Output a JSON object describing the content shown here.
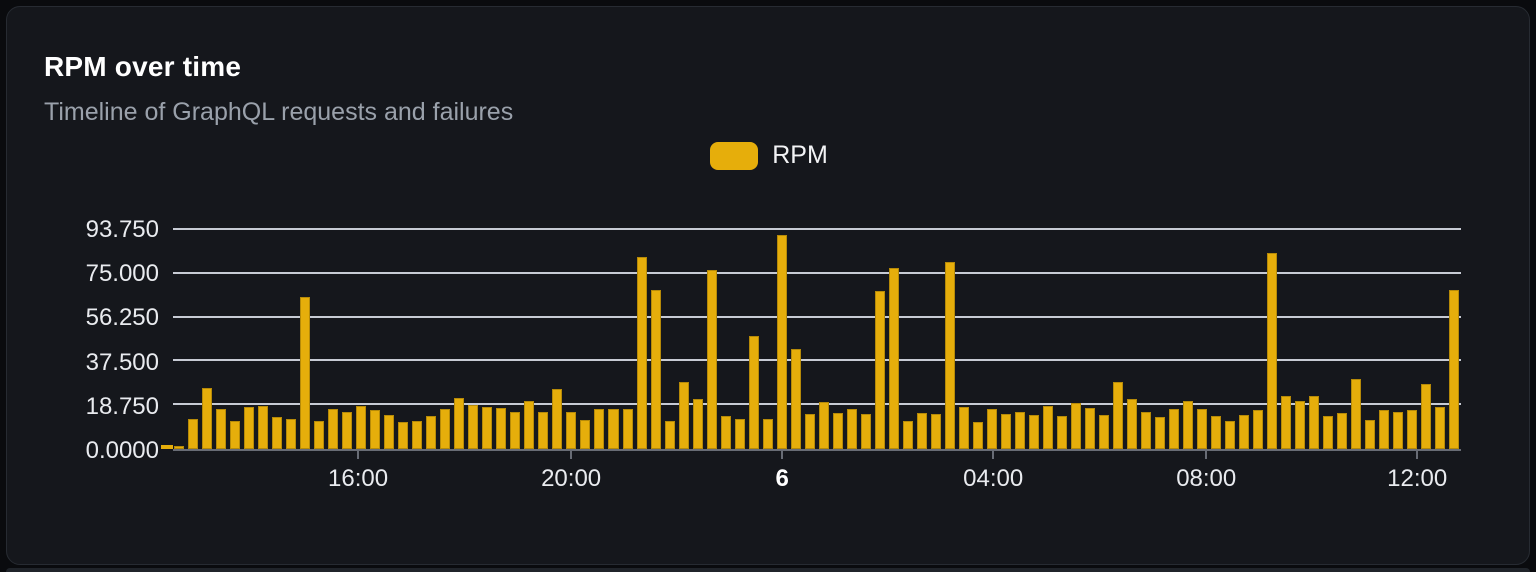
{
  "card": {
    "title": "RPM over time",
    "subtitle": "Timeline of GraphQL requests and failures"
  },
  "legend": {
    "label": "RPM",
    "swatch_color": "#e6ae0b"
  },
  "colors": {
    "page_background": "#0a0b0e",
    "card_background": "#15171c",
    "card_border": "#272b32",
    "bar": "#e6ae0b",
    "gridline": "#d7dbe4",
    "axis": "#686c75",
    "title_text": "#ffffff",
    "subtitle_text": "#9aa1ab",
    "axis_text": "#e9ebef"
  },
  "chart_data": {
    "type": "bar",
    "title": "RPM over time",
    "subtitle": "Timeline of GraphQL requests and failures",
    "series_name": "RPM",
    "xlabel": "",
    "ylabel": "",
    "ylim": [
      0,
      93.75
    ],
    "grid": true,
    "legend_position": "top-center",
    "y_ticks": [
      "93.750",
      "75.000",
      "56.250",
      "37.500",
      "18.750",
      "0.0000"
    ],
    "y_tick_values": [
      93.75,
      75.0,
      56.25,
      37.5,
      18.75,
      0.0
    ],
    "x_ticks": [
      {
        "label": "16:00",
        "pos": 0.1437,
        "bold": false
      },
      {
        "label": "20:00",
        "pos": 0.3091,
        "bold": false
      },
      {
        "label": "6",
        "pos": 0.473,
        "bold": true
      },
      {
        "label": "04:00",
        "pos": 0.6368,
        "bold": false
      },
      {
        "label": "08:00",
        "pos": 0.8022,
        "bold": false
      },
      {
        "label": "12:00",
        "pos": 0.966,
        "bold": false
      }
    ],
    "values": [
      1.5,
      13,
      26,
      17,
      12,
      18,
      18.5,
      13.5,
      13,
      65,
      12,
      17,
      16,
      18.5,
      16.5,
      14.5,
      11.5,
      12,
      14,
      17,
      22,
      19,
      18,
      17.5,
      16,
      20.5,
      16,
      25.5,
      16,
      12.5,
      17,
      17,
      17,
      82,
      68,
      12,
      28.5,
      21.5,
      76.5,
      14,
      13,
      48.5,
      13,
      91.5,
      43,
      15,
      20,
      15.5,
      17,
      15,
      67.5,
      77.5,
      12,
      15.5,
      15,
      80,
      18,
      11.5,
      17,
      15,
      16,
      14.5,
      18.5,
      14,
      19.5,
      17.5,
      14.5,
      28.5,
      21.5,
      16,
      13.5,
      17,
      20.5,
      17,
      14,
      12,
      14.5,
      16.5,
      84,
      22.5,
      20.5,
      22.5,
      14,
      15.5,
      30,
      12.5,
      16.5,
      16,
      16.5,
      28,
      18,
      68
    ]
  }
}
